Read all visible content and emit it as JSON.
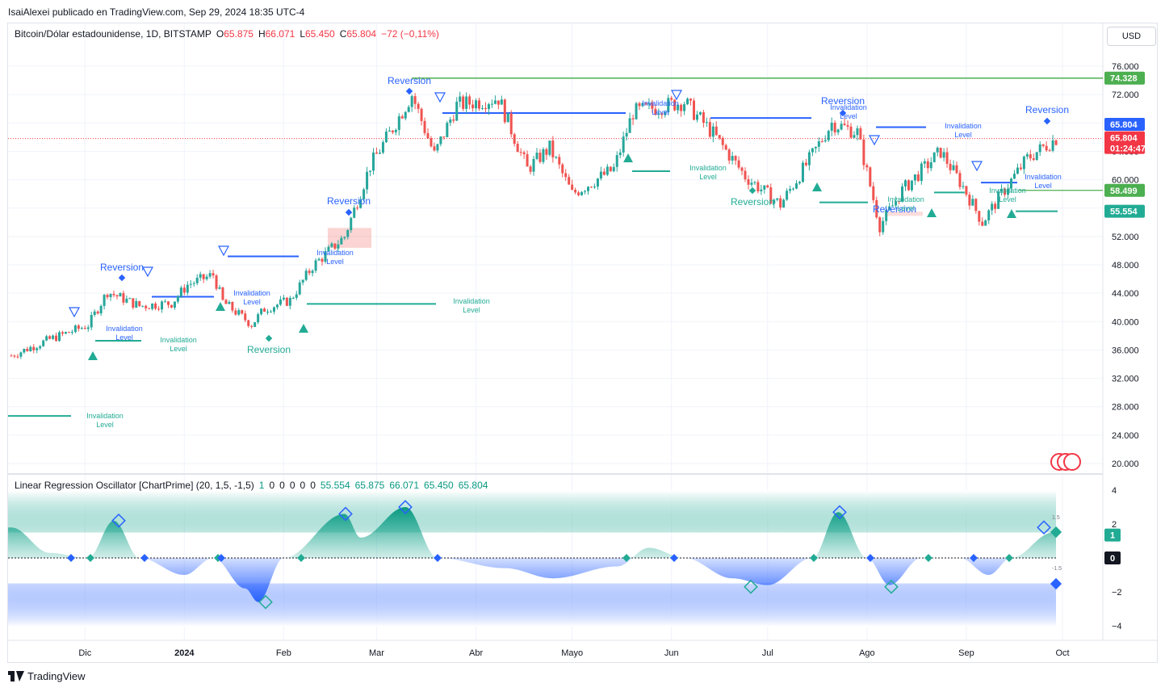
{
  "header": {
    "publisher_line": "IsaiAlexei publicado en TradingView.com, Sep 29, 2024 18:35 UTC-4"
  },
  "legend": {
    "symbol": "Bitcoin/Dólar estadounidense, 1D, BITSTAMP",
    "open_label": "O",
    "open": "65.875",
    "high_label": "H",
    "high": "66.071",
    "low_label": "L",
    "low": "65.450",
    "close_label": "C",
    "close": "65.804",
    "change": "−72 (−0,11%)"
  },
  "currency_button": "USD",
  "oscillator_legend": {
    "name": "Linear Regression Oscillator [ChartPrime] (20, 1,5, -1,5)",
    "values": [
      "1",
      "0",
      "0",
      "0",
      "0",
      "0",
      "55.554",
      "65.875",
      "66.071",
      "65.450",
      "65.804"
    ]
  },
  "price_axis": {
    "ticks": [
      "76.000",
      "72.000",
      "68.000",
      "64.000",
      "60.000",
      "56.000",
      "52.000",
      "48.000",
      "44.000",
      "40.000",
      "36.000",
      "32.000",
      "28.000",
      "24.000",
      "20.000"
    ],
    "labels": [
      {
        "text": "74.328",
        "value": 74328,
        "color": "#4caf50"
      },
      {
        "text": "65.804",
        "value": 67800,
        "color": "#2962ff"
      },
      {
        "text": "65.804",
        "value": 65804,
        "color": "#f23645",
        "sub": "01:24:47"
      },
      {
        "text": "58.499",
        "value": 58499,
        "color": "#4caf50"
      },
      {
        "text": "55.554",
        "value": 55554,
        "color": "#22ab94"
      }
    ]
  },
  "osc_axis": {
    "ticks": [
      "4",
      "2",
      "0",
      "−2",
      "−4"
    ],
    "labels": [
      {
        "text": "1",
        "color": "#22ab94"
      },
      {
        "text": "0",
        "color": "#131722"
      }
    ],
    "small": [
      "1.5",
      "-1.5"
    ]
  },
  "time_axis": [
    "Dic",
    "2024",
    "Feb",
    "Mar",
    "Abr",
    "Mayo",
    "Jun",
    "Jul",
    "Ago",
    "Sep",
    "Oct"
  ],
  "annotations": {
    "reversion": "Reversion",
    "invalidation_1": "Invalidation",
    "invalidation_2": "Level"
  },
  "brand": "TradingView",
  "colors": {
    "up": "#26a69a",
    "down": "#ef5350",
    "bull": "#22ab94",
    "bear": "#2962ff"
  },
  "chart_data": {
    "type": "candlestick",
    "title": "Bitcoin/Dólar estadounidense, 1D, BITSTAMP",
    "yrange": [
      19000,
      78000
    ],
    "x_dates": [
      "2023-11",
      "2023-12",
      "2024-01",
      "2024-02",
      "2024-03",
      "2024-04",
      "2024-05",
      "2024-06",
      "2024-07",
      "2024-08",
      "2024-09",
      "2024-10"
    ],
    "close_path": [
      [
        "2023-11-08",
        35200
      ],
      [
        "2023-11-20",
        37500
      ],
      [
        "2023-12-02",
        39500
      ],
      [
        "2023-12-08",
        44200
      ],
      [
        "2023-12-18",
        42200
      ],
      [
        "2023-12-28",
        42600
      ],
      [
        "2024-01-02",
        45200
      ],
      [
        "2024-01-10",
        46600
      ],
      [
        "2024-01-13",
        42800
      ],
      [
        "2024-01-22",
        39600
      ],
      [
        "2024-01-26",
        41800
      ],
      [
        "2024-02-03",
        43000
      ],
      [
        "2024-02-10",
        47800
      ],
      [
        "2024-02-20",
        52000
      ],
      [
        "2024-02-28",
        62000
      ],
      [
        "2024-03-05",
        66500
      ],
      [
        "2024-03-12",
        72000
      ],
      [
        "2024-03-19",
        63500
      ],
      [
        "2024-03-26",
        70500
      ],
      [
        "2024-04-08",
        71500
      ],
      [
        "2024-04-17",
        61500
      ],
      [
        "2024-04-24",
        64500
      ],
      [
        "2024-05-01",
        58000
      ],
      [
        "2024-05-14",
        61500
      ],
      [
        "2024-05-20",
        69500
      ],
      [
        "2024-06-05",
        71000
      ],
      [
        "2024-06-14",
        66500
      ],
      [
        "2024-06-24",
        60500
      ],
      [
        "2024-07-05",
        56500
      ],
      [
        "2024-07-15",
        63500
      ],
      [
        "2024-07-21",
        68000
      ],
      [
        "2024-07-29",
        66700
      ],
      [
        "2024-08-05",
        53500
      ],
      [
        "2024-08-12",
        58500
      ],
      [
        "2024-08-24",
        64000
      ],
      [
        "2024-08-31",
        59000
      ],
      [
        "2024-09-06",
        54000
      ],
      [
        "2024-09-12",
        58000
      ],
      [
        "2024-09-20",
        63000
      ],
      [
        "2024-09-29",
        65804
      ]
    ],
    "horizontal_levels": [
      {
        "value": 74328,
        "color": "#4caf50"
      },
      {
        "value": 58499,
        "color": "#4caf50"
      },
      {
        "value": 55554,
        "color": "#22ab94"
      }
    ],
    "oscillator": {
      "name": "Linear Regression Oscillator [ChartPrime]",
      "range": [
        -4.5,
        4.5
      ],
      "upper_band": 1.5,
      "lower_band": -1.5,
      "points": [
        [
          "2023-11-08",
          1.8
        ],
        [
          "2023-11-20",
          0.3
        ],
        [
          "2023-12-02",
          0.0
        ],
        [
          "2023-12-10",
          2.2
        ],
        [
          "2023-12-18",
          0.0
        ],
        [
          "2024-01-01",
          -1.0
        ],
        [
          "2024-01-10",
          0.0
        ],
        [
          "2024-01-20",
          -1.8
        ],
        [
          "2024-01-24",
          -2.6
        ],
        [
          "2024-02-01",
          0.0
        ],
        [
          "2024-02-20",
          2.6
        ],
        [
          "2024-02-25",
          1.2
        ],
        [
          "2024-03-10",
          3.0
        ],
        [
          "2024-03-20",
          0.0
        ],
        [
          "2024-04-10",
          -0.6
        ],
        [
          "2024-04-25",
          -1.2
        ],
        [
          "2024-05-15",
          -0.5
        ],
        [
          "2024-05-25",
          0.6
        ],
        [
          "2024-06-05",
          0.0
        ],
        [
          "2024-06-20",
          -1.2
        ],
        [
          "2024-07-01",
          -1.6
        ],
        [
          "2024-07-15",
          0.0
        ],
        [
          "2024-07-23",
          2.7
        ],
        [
          "2024-08-01",
          0.0
        ],
        [
          "2024-08-08",
          -1.6
        ],
        [
          "2024-08-18",
          0.0
        ],
        [
          "2024-08-30",
          0.0
        ],
        [
          "2024-09-08",
          -1.0
        ],
        [
          "2024-09-15",
          0.0
        ],
        [
          "2024-09-28",
          1.5
        ]
      ]
    }
  }
}
